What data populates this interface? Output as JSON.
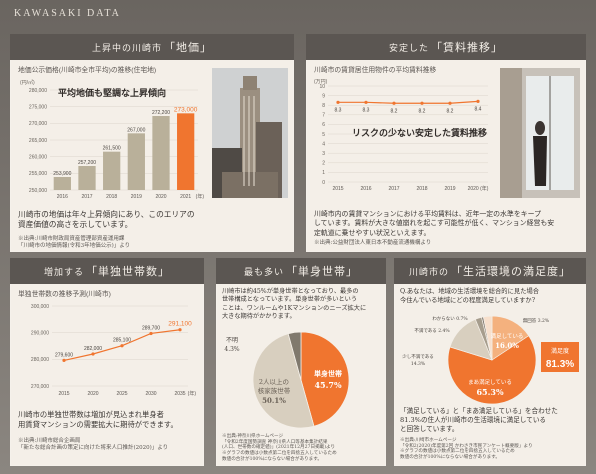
{
  "header": {
    "title": "KAWASAKI DATA"
  },
  "land": {
    "panel_title_a": "上昇中の川崎市",
    "panel_title_b": "「地価」",
    "chart_title": "地価公示価格(川崎市全市平均)の推移(住宅地)",
    "unit": "(円/㎡)",
    "xunit": "(年)",
    "callout": "平均地価も堅調な上昇傾向",
    "desc1": "川崎市の地価は年々上昇傾向にあり、このエリアの",
    "desc2": "資産価値の高さを示しています。",
    "note1": "※出典:川崎市財政局資産管理部資産運用課",
    "note2": "「川崎市の地価情報(令和3年地価公示)」より"
  },
  "rent": {
    "panel_title_a": "安定した",
    "panel_title_b": "「賃料推移」",
    "chart_title": "川崎市の賃貸居住用物件の平均賃料推移",
    "unit": "(万円)",
    "xunit": "2020 (年)",
    "callout": "リスクの少ない安定した賃料推移",
    "desc1": "川崎市内の賃貸マンションにおける平均賃料は、近年一定の水準をキープ",
    "desc2": "しています。賃料が大きな値崩れを起こす可能性が低く、マンション経営も安",
    "desc3": "定軌道に乗せやすい状況といえます。",
    "note1": "※出典:公益財団法人東日本不動産流通機構より"
  },
  "single": {
    "panel_title_a": "増加する",
    "panel_title_b": "「単独世帯数」",
    "chart_title": "単独世帯数の推移予測(川崎市)",
    "xunit": "(年)",
    "desc1": "川崎市の単独世帯数は増加が見込まれ単身者",
    "desc2": "用賃貸マンションの需要拡大に期待ができます。",
    "note1": "※出典:川崎市総合企画局",
    "note2": "「新たな総合計画の策定に向けた将来人口推計(2020)」より"
  },
  "household": {
    "panel_title_a": "最も多い",
    "panel_title_b": "「単身世帯」",
    "desc1": "川崎市は約45%が単身世帯となっており、最多の",
    "desc2": "世帯構成となっています。単身世帯が多いという",
    "desc3": "ことは、ワンルームや1Kマンションのニーズ拡大に",
    "desc4": "大きな期待がかかります。",
    "unknown_label": "不明",
    "unknown_value": "4.3%",
    "multi_label1": "2人以上の",
    "multi_label2": "核家族世帯",
    "multi_value": "50.1%",
    "single_label": "単身世帯",
    "single_value": "45.7%",
    "note1": "※出典:神奈川県ホームページ",
    "note2": "「令和2年度国勢調査 神奈川県人口等基本集計結果",
    "note3": "(人口、世帯数の確定値)」(2021年12月27日掲載)より",
    "note4": "※グラフの数値は小数点第二位を四捨五入しているため",
    "note5": "数値の合計が100%にならない場合があります。"
  },
  "satisfaction": {
    "panel_title_a": "川崎市の",
    "panel_title_b": "「生活環境の満足度」",
    "q1": "Q.あなたは、地域の生活環境を総合的に見た場合",
    "q2": "今住んでいる地域にどの程度満足していますか?",
    "unknown": "わからない 0.7%",
    "no_answer": "無回答 3.2%",
    "dissatisfied": "不満である 2.4%",
    "somewhat_dissatisfied1": "少し不満である",
    "somewhat_dissatisfied2": "14.3%",
    "satisfied_label": "満足している",
    "satisfied_value": "16.0%",
    "mostly_label": "まあ満足している",
    "mostly_value": "65.3%",
    "total_label": "満足度",
    "total_value": "81.3%",
    "desc1": "「満足している」と「まあ満足している」を合わせた",
    "desc2": "81.3%の住人が川崎市の生活環境に満足している",
    "desc3": "と回答しています。",
    "note1": "※出典:川崎市ホームページ",
    "note2": "「令和2(2020)年度第2回 かわさき市民アンケート概要版」より",
    "note3": "※グラフの数値は小数点第二位を四捨五入しているため",
    "note4": "数値の合計が100%にならない場合があります。"
  },
  "chart_data": [
    {
      "type": "bar",
      "title": "地価公示価格(川崎市全市平均)の推移(住宅地)",
      "categories": [
        "2016",
        "2017",
        "2018",
        "2019",
        "2020",
        "2021"
      ],
      "values": [
        253900,
        257200,
        261500,
        267000,
        272200,
        273000
      ],
      "value_labels": [
        "253,900",
        "257,200",
        "261,500",
        "267,000",
        "272,200",
        "273,000"
      ],
      "ylim": [
        250000,
        280000
      ],
      "yticks": [
        "250,000",
        "255,000",
        "260,000",
        "265,000",
        "270,000",
        "275,000",
        "280,000"
      ],
      "ylabel": "(円/㎡)",
      "xlabel": "(年)",
      "colors": [
        "#b9b09a",
        "#b9b09a",
        "#b9b09a",
        "#b9b09a",
        "#b9b09a",
        "#f0752f"
      ]
    },
    {
      "type": "line",
      "title": "川崎市の賃貸居住用物件の平均賃料推移",
      "categories": [
        "2015",
        "2016",
        "2017",
        "2018",
        "2019",
        "2020"
      ],
      "values": [
        8.3,
        8.3,
        8.2,
        8.2,
        8.2,
        8.4
      ],
      "value_labels": [
        "8.3",
        "8.3",
        "8.2",
        "8.2",
        "8.2",
        "8.4"
      ],
      "ylim": [
        0,
        10
      ],
      "yticks": [
        "0",
        "1",
        "2",
        "3",
        "4",
        "5",
        "6",
        "7",
        "8",
        "9",
        "10"
      ],
      "ylabel": "(万円)",
      "xlabel": "(年)",
      "color": "#f0752f"
    },
    {
      "type": "line",
      "title": "単独世帯数の推移予測(川崎市)",
      "categories": [
        "2015",
        "2020",
        "2025",
        "2030",
        "2035"
      ],
      "values": [
        279600,
        282000,
        285100,
        289700,
        291100
      ],
      "value_labels": [
        "279,600",
        "282,000",
        "285,100",
        "289,700",
        "291,100"
      ],
      "ylim": [
        270000,
        300000
      ],
      "yticks": [
        "270,000",
        "280,000",
        "290,000",
        "300,000"
      ],
      "xlabel": "(年)",
      "color": "#f0752f"
    },
    {
      "type": "pie",
      "slices": [
        {
          "label": "単身世帯",
          "value": 45.7
        },
        {
          "label": "2人以上の核家族世帯",
          "value": 50.1
        },
        {
          "label": "不明",
          "value": 4.3
        }
      ],
      "colors": [
        "#f0752f",
        "#d8cfbf",
        "#80796d"
      ]
    },
    {
      "type": "pie",
      "slices": [
        {
          "label": "満足している",
          "value": 16.0
        },
        {
          "label": "まあ満足している",
          "value": 65.3
        },
        {
          "label": "少し不満である",
          "value": 14.3
        },
        {
          "label": "不満である",
          "value": 2.4
        },
        {
          "label": "わからない",
          "value": 0.7
        },
        {
          "label": "無回答",
          "value": 3.2
        }
      ],
      "colors": [
        "#f4b17e",
        "#f0752f",
        "#d8cfbf",
        "#a69d8d",
        "#7a736a",
        "#f7e0cd"
      ]
    }
  ]
}
